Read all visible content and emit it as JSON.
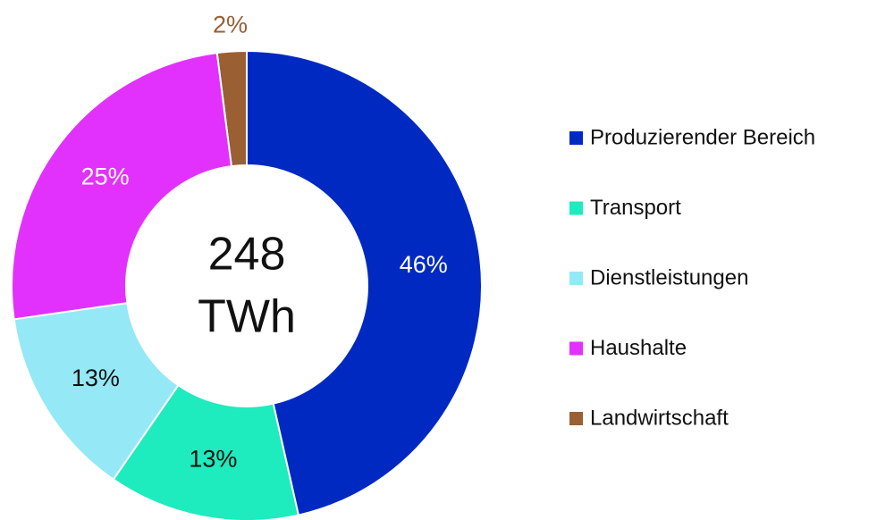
{
  "chart_data": {
    "type": "donut",
    "categories": [
      "Produzierender Bereich",
      "Transport",
      "Dienstleistungen",
      "Haushalte",
      "Landwirtschaft"
    ],
    "values": [
      46,
      13,
      13,
      25,
      2
    ],
    "value_labels": [
      "46%",
      "13%",
      "13%",
      "25%",
      "2%"
    ],
    "colors": [
      "#0029c2",
      "#1eebbe",
      "#95e8f6",
      "#e331fd",
      "#9a5f33"
    ],
    "label_colors": [
      "#ffffff",
      "#111111",
      "#111111",
      "#ffffff",
      "#9a5f33"
    ],
    "center_label": [
      "248",
      "TWh"
    ],
    "legend": "right"
  }
}
